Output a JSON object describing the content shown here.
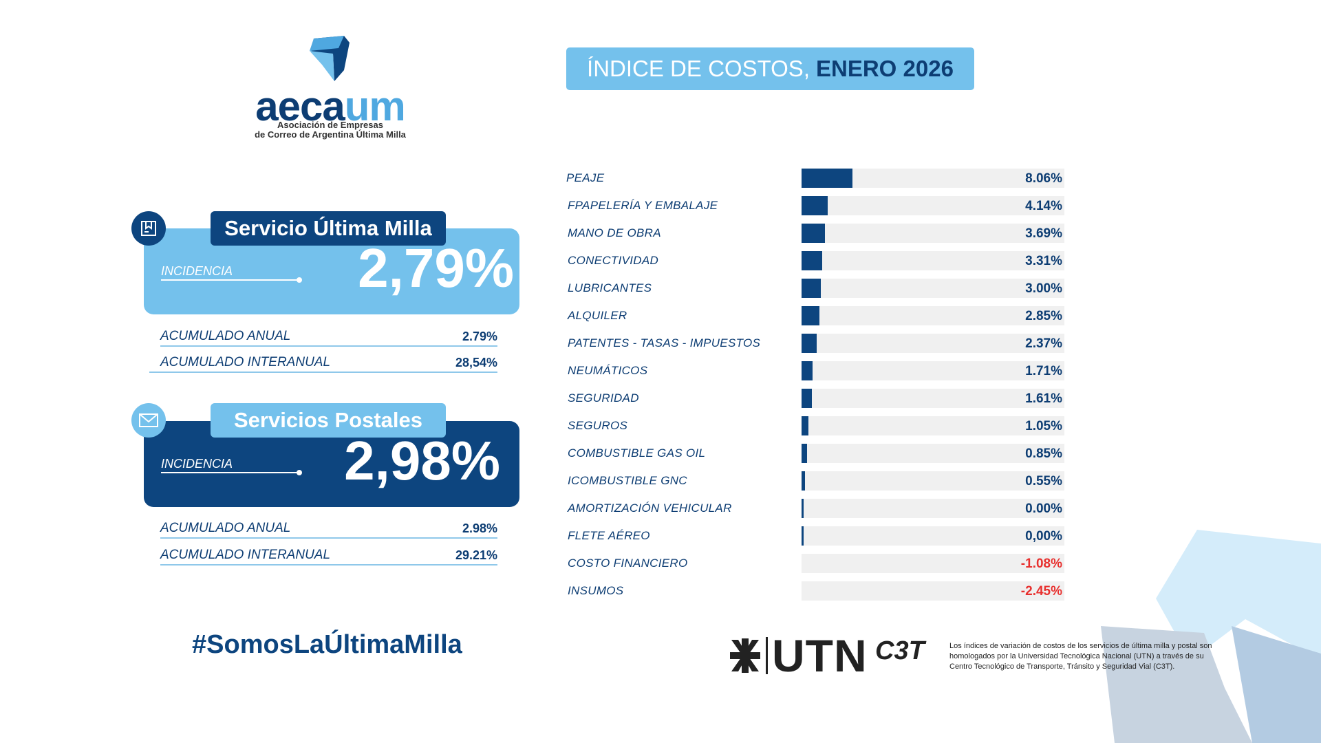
{
  "logo": {
    "word_main": "aeca",
    "word_accent": "um",
    "subtitle_1": "Asociación de Empresas",
    "subtitle_2": "de Correo de Argentina Última Milla"
  },
  "title": {
    "prefix": "ÍNDICE DE COSTOS,",
    "period": "ENERO 2026"
  },
  "services": [
    {
      "name": "Servicio Última Milla",
      "incidence_label": "INCIDENCIA",
      "incidence": "2,79%",
      "acc_annual_label": "ACUMULADO ANUAL",
      "acc_annual": "2.79%",
      "acc_interannual_label": "ACUMULADO INTERANUAL",
      "acc_interannual": "28,54%"
    },
    {
      "name": "Servicios Postales",
      "incidence_label": "INCIDENCIA",
      "incidence": "2,98%",
      "acc_annual_label": "ACUMULADO ANUAL",
      "acc_annual": "2.98%",
      "acc_interannual_label": "ACUMULADO INTERANUAL",
      "acc_interannual": "29.21%"
    }
  ],
  "hashtag": "#SomosLaÚltimaMilla",
  "chart_data": {
    "type": "bar",
    "orientation": "horizontal",
    "categories": [
      "PEAJE",
      "FPAPELERÍA Y EMBALAJE",
      "MANO DE OBRA",
      "CONECTIVIDAD",
      "LUBRICANTES",
      "ALQUILER",
      "PATENTES - TASAS - IMPUESTOS",
      "NEUMÁTICOS",
      "SEGURIDAD",
      "SEGUROS",
      "COMBUSTIBLE GAS OIL",
      "ICOMBUSTIBLE GNC",
      "AMORTIZACIÓN VEHICULAR",
      "FLETE AÉREO",
      "COSTO FINANCIERO",
      "INSUMOS"
    ],
    "values": [
      8.06,
      4.14,
      3.69,
      3.31,
      3.0,
      2.85,
      2.37,
      1.71,
      1.61,
      1.05,
      0.85,
      0.55,
      0.0,
      0.0,
      -1.08,
      -2.45
    ],
    "value_labels": [
      "8.06%",
      "4.14%",
      "3.69%",
      "3.31%",
      "3.00%",
      "2.85%",
      "2.37%",
      "1.71%",
      "1.61%",
      "1.05%",
      "0.85%",
      "0.55%",
      "0.00%",
      "0,00%",
      "-1.08%",
      "-2.45%"
    ],
    "xlim": [
      0,
      100
    ],
    "colors": {
      "bar": "#0d457f",
      "track": "#f0f0f0",
      "negative_label": "#e8302e"
    }
  },
  "footer": {
    "utn": "UTN",
    "c3t": "C3T",
    "note": "Los índices de variación de costos de los servicios de última milla y postal son homologados por la Universidad Tecnológica Nacional (UTN) a través de su Centro Tecnológico de Transporte, Tránsito y Seguridad Vial (C3T)."
  },
  "icons": [
    "parcel-icon",
    "envelope-icon"
  ]
}
